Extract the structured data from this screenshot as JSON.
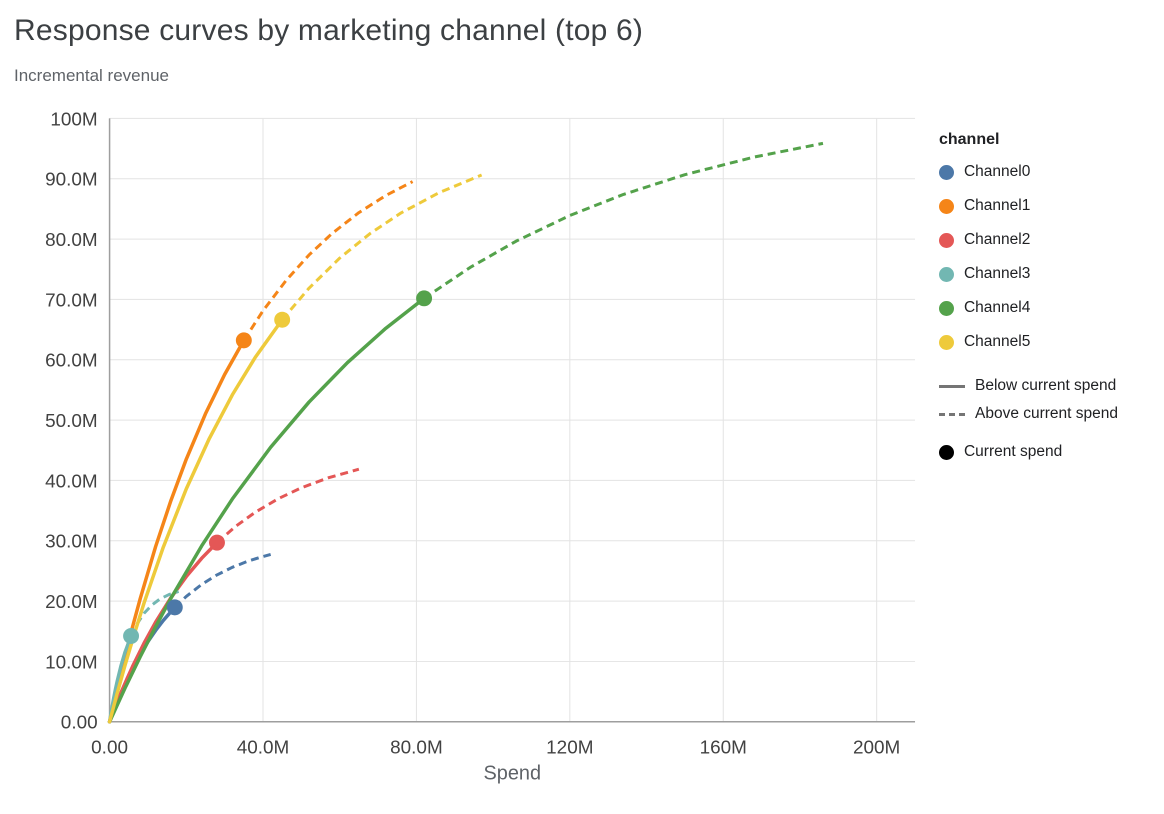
{
  "header": {
    "title": "Response curves by marketing channel (top 6)",
    "subtitle": "Incremental revenue"
  },
  "chart_data": {
    "type": "line",
    "title": "Response curves by marketing channel (top 6)",
    "subtitle": "Incremental revenue",
    "xlabel": "Spend",
    "ylabel": "Incremental revenue",
    "value_unit": "millions",
    "grid": true,
    "legend_position": "right",
    "x_domain_m": [
      0,
      210
    ],
    "y_domain_m": [
      0,
      100
    ],
    "x_ticks": [
      {
        "value": 0,
        "label": "0.00"
      },
      {
        "value": 40,
        "label": "40.0M"
      },
      {
        "value": 80,
        "label": "80.0M"
      },
      {
        "value": 120,
        "label": "120M"
      },
      {
        "value": 160,
        "label": "160M"
      },
      {
        "value": 200,
        "label": "200M"
      }
    ],
    "y_ticks": [
      {
        "value": 0,
        "label": "0.00"
      },
      {
        "value": 10,
        "label": "10.0M"
      },
      {
        "value": 20,
        "label": "20.0M"
      },
      {
        "value": 30,
        "label": "30.0M"
      },
      {
        "value": 40,
        "label": "40.0M"
      },
      {
        "value": 50,
        "label": "50.0M"
      },
      {
        "value": 60,
        "label": "60.0M"
      },
      {
        "value": 70,
        "label": "70.0M"
      },
      {
        "value": 80,
        "label": "80.0M"
      },
      {
        "value": 90,
        "label": "90.0M"
      },
      {
        "value": 100,
        "label": "100M"
      }
    ],
    "legend": {
      "channel_title": "channel",
      "below_label": "Below current spend",
      "above_label": "Above current spend",
      "current_label": "Current spend",
      "line_color": "#757575",
      "current_dot_color": "#000000"
    },
    "series": [
      {
        "name": "Channel0",
        "color": "#4c78a8",
        "current_spend_m": 17,
        "current_revenue_m": 18.96,
        "below_current": {
          "x": [
            0,
            1,
            2,
            3,
            4,
            6,
            8,
            10,
            12,
            14,
            17
          ],
          "y": [
            0,
            1.69,
            3.29,
            4.8,
            6.23,
            8.85,
            11.19,
            13.28,
            15.13,
            16.8,
            18.96
          ]
        },
        "above_current": {
          "x": [
            17,
            20,
            24,
            28,
            32,
            36,
            39,
            42
          ],
          "y": [
            18.96,
            20.78,
            22.76,
            24.34,
            25.6,
            26.6,
            27.21,
            27.73
          ]
        }
      },
      {
        "name": "Channel1",
        "color": "#f58518",
        "current_spend_m": 35,
        "current_revenue_m": 63.21,
        "below_current": {
          "x": [
            0,
            2,
            4,
            6,
            8,
            12,
            16,
            20,
            25,
            30,
            35
          ],
          "y": [
            0,
            5.55,
            10.8,
            15.75,
            20.43,
            29.03,
            36.68,
            43.53,
            51.05,
            57.56,
            63.21
          ]
        },
        "above_current": {
          "x": [
            35,
            40,
            46,
            52,
            58,
            65,
            72,
            79
          ],
          "y": [
            63.21,
            68.12,
            73.13,
            77.37,
            80.93,
            84.39,
            87.22,
            89.53
          ]
        }
      },
      {
        "name": "Channel2",
        "color": "#e45756",
        "current_spend_m": 28,
        "current_revenue_m": 29.69,
        "below_current": {
          "x": [
            0,
            1.5,
            3,
            4.5,
            6,
            9,
            12,
            16,
            20,
            24,
            28
          ],
          "y": [
            0,
            2.49,
            4.84,
            7.06,
            9.17,
            13.04,
            16.5,
            20.57,
            24.07,
            27.09,
            29.69
          ]
        },
        "above_current": {
          "x": [
            28,
            33,
            38,
            44,
            50,
            57,
            65
          ],
          "y": [
            29.69,
            32.45,
            34.74,
            36.98,
            38.78,
            40.43,
            41.86
          ]
        }
      },
      {
        "name": "Channel3",
        "color": "#72b7b2",
        "current_spend_m": 5.6,
        "current_revenue_m": 14.22,
        "below_current": {
          "x": [
            0,
            0.5,
            1,
            1.5,
            2,
            3,
            4,
            5.6
          ],
          "y": [
            0,
            1.92,
            3.68,
            5.29,
            6.76,
            9.33,
            11.49,
            14.22
          ]
        },
        "above_current": {
          "x": [
            5.6,
            7,
            9,
            11,
            13,
            15.5,
            18
          ],
          "y": [
            14.22,
            16.05,
            17.99,
            19.34,
            20.29,
            21.09,
            21.6
          ]
        }
      },
      {
        "name": "Channel4",
        "color": "#54a24b",
        "current_spend_m": 82,
        "current_revenue_m": 70.18,
        "below_current": {
          "x": [
            0,
            4,
            8,
            12,
            16,
            24,
            32,
            42,
            52,
            62,
            72,
            82
          ],
          "y": [
            0,
            5.55,
            10.79,
            15.77,
            20.47,
            29.14,
            36.92,
            45.5,
            52.99,
            59.52,
            65.21,
            70.18
          ]
        },
        "above_current": {
          "x": [
            82,
            94,
            106,
            120,
            134,
            150,
            168,
            186
          ],
          "y": [
            70.18,
            75.3,
            79.66,
            83.91,
            87.41,
            90.68,
            93.59,
            95.87
          ]
        }
      },
      {
        "name": "Channel5",
        "color": "#eeca3b",
        "current_spend_m": 45,
        "current_revenue_m": 66.63,
        "below_current": {
          "x": [
            0,
            2,
            4,
            6.5,
            9,
            14,
            20,
            26,
            32,
            38,
            45
          ],
          "y": [
            0,
            4.76,
            9.3,
            14.66,
            19.71,
            28.93,
            38.6,
            46.95,
            54.18,
            60.42,
            66.63
          ]
        },
        "above_current": {
          "x": [
            45,
            52,
            60,
            68,
            76,
            86,
            97
          ],
          "y": [
            66.63,
            71.87,
            76.85,
            80.96,
            84.34,
            87.72,
            90.62
          ]
        }
      }
    ]
  }
}
